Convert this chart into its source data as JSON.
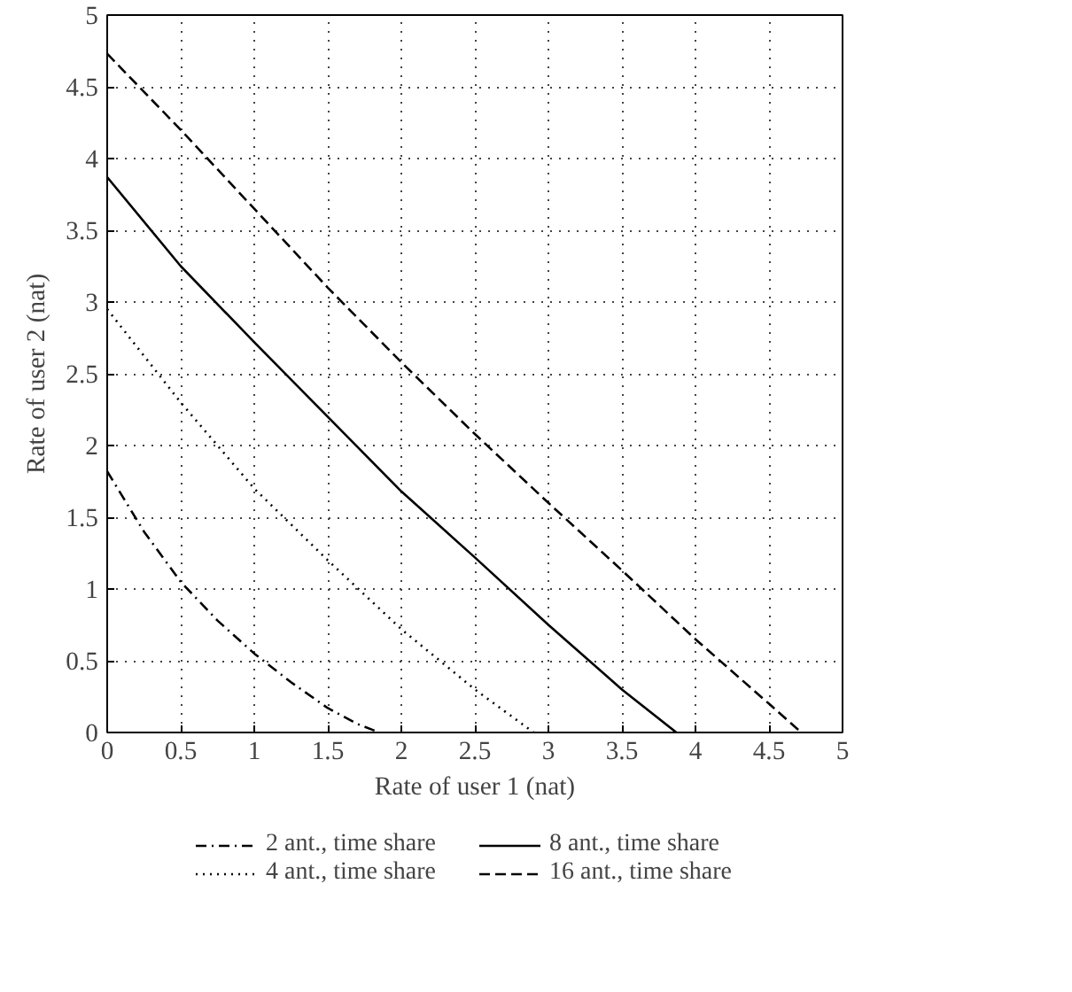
{
  "chart_data": {
    "type": "line",
    "xlabel": "Rate of user 1 (nat)",
    "ylabel": "Rate of user 2 (nat)",
    "xlim": [
      0,
      5
    ],
    "ylim": [
      0,
      5
    ],
    "xticks": [
      0,
      0.5,
      1,
      1.5,
      2,
      2.5,
      3,
      3.5,
      4,
      4.5,
      5
    ],
    "yticks": [
      0,
      0.5,
      1,
      1.5,
      2,
      2.5,
      3,
      3.5,
      4,
      4.5,
      5
    ],
    "grid": true,
    "legend": "bottom",
    "marker": "none",
    "series": [
      {
        "name": "2 ant., time share",
        "color": "#000000",
        "line_style": "dashdot",
        "x": [
          0,
          0.25,
          0.5,
          0.75,
          1,
          1.25,
          1.5,
          1.7,
          1.85
        ],
        "values": [
          1.82,
          1.4,
          1.05,
          0.78,
          0.55,
          0.35,
          0.17,
          0.06,
          0
        ]
      },
      {
        "name": "4 ant., time share",
        "color": "#000000",
        "line_style": "dotted",
        "x": [
          0,
          0.5,
          1,
          1.5,
          2,
          2.5,
          2.9
        ],
        "values": [
          2.95,
          2.3,
          1.7,
          1.2,
          0.72,
          0.3,
          0
        ]
      },
      {
        "name": "8 ant., time share",
        "color": "#000000",
        "line_style": "solid",
        "x": [
          0,
          0.5,
          1,
          1.5,
          2,
          2.5,
          3,
          3.5,
          3.87
        ],
        "values": [
          3.87,
          3.25,
          2.72,
          2.2,
          1.68,
          1.22,
          0.75,
          0.3,
          0
        ]
      },
      {
        "name": "16 ant., time share",
        "color": "#000000",
        "line_style": "dashed",
        "x": [
          0,
          0.5,
          1,
          1.5,
          2,
          2.5,
          3,
          3.5,
          4,
          4.5,
          4.72
        ],
        "values": [
          4.73,
          4.2,
          3.65,
          3.1,
          2.58,
          2.08,
          1.6,
          1.13,
          0.65,
          0.2,
          0
        ]
      }
    ]
  }
}
